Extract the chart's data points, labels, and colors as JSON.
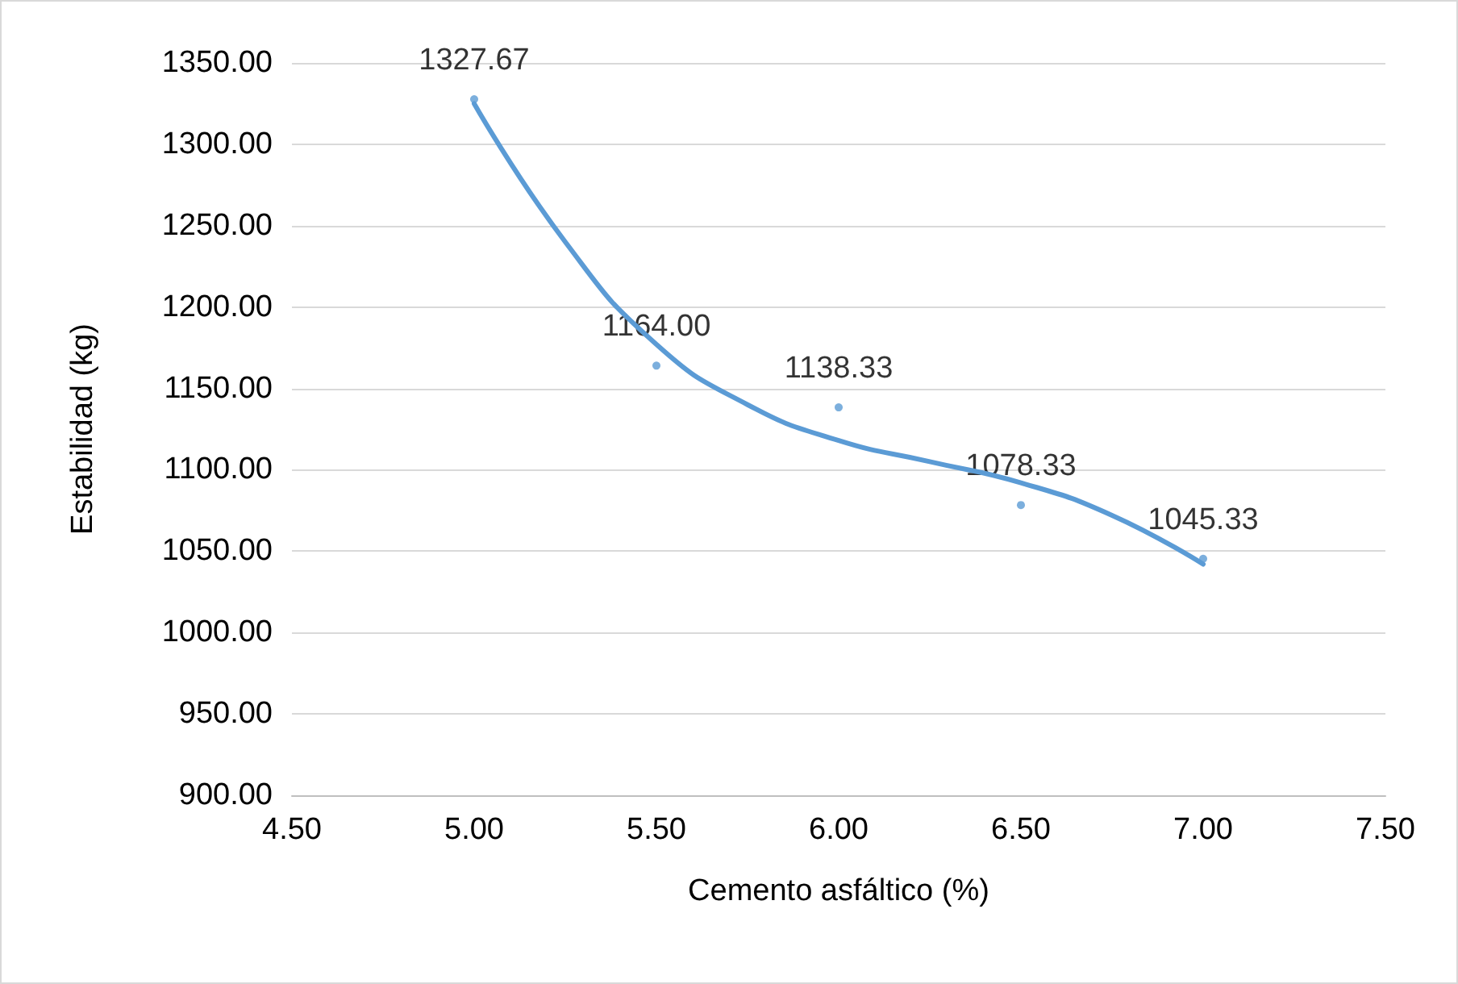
{
  "chart_data": {
    "type": "scatter",
    "xlabel": "Cemento asfáltico (%)",
    "ylabel": "Estabilidad (kg)",
    "xlim": [
      4.5,
      7.5
    ],
    "ylim": [
      900,
      1350
    ],
    "xticks": [
      {
        "value": 4.5,
        "label": "4.50"
      },
      {
        "value": 5,
        "label": "5.00"
      },
      {
        "value": 5.5,
        "label": "5.50"
      },
      {
        "value": 6,
        "label": "6.00"
      },
      {
        "value": 6.5,
        "label": "6.50"
      },
      {
        "value": 7,
        "label": "7.00"
      },
      {
        "value": 7.5,
        "label": "7.50"
      }
    ],
    "yticks": [
      {
        "value": 900,
        "label": "900.00"
      },
      {
        "value": 950,
        "label": "950.00"
      },
      {
        "value": 1000,
        "label": "1000.00"
      },
      {
        "value": 1050,
        "label": "1050.00"
      },
      {
        "value": 1100,
        "label": "1100.00"
      },
      {
        "value": 1150,
        "label": "1150.00"
      },
      {
        "value": 1200,
        "label": "1200.00"
      },
      {
        "value": 1250,
        "label": "1250.00"
      },
      {
        "value": 1300,
        "label": "1300.00"
      },
      {
        "value": 1350,
        "label": "1350.00"
      }
    ],
    "grid": "y",
    "series": [
      {
        "marker": "circle",
        "x": [
          5,
          5.5,
          6,
          6.5,
          7
        ],
        "values": [
          1327.67,
          1164.0,
          1138.33,
          1078.33,
          1045.33
        ],
        "value_labels": [
          "1327.67",
          "1164.00",
          "1138.33",
          "1078.33",
          "1045.33"
        ],
        "color": "#5b9bd5"
      },
      {
        "type": "line",
        "marker": "none",
        "x": [
          5,
          5.25,
          5.5,
          5.75,
          6,
          6.25,
          6.5,
          6.75,
          7
        ],
        "values": [
          1325,
          1240,
          1177,
          1140,
          1118,
          1105,
          1092,
          1072,
          1042
        ],
        "color": "#5b9bd5"
      }
    ]
  }
}
